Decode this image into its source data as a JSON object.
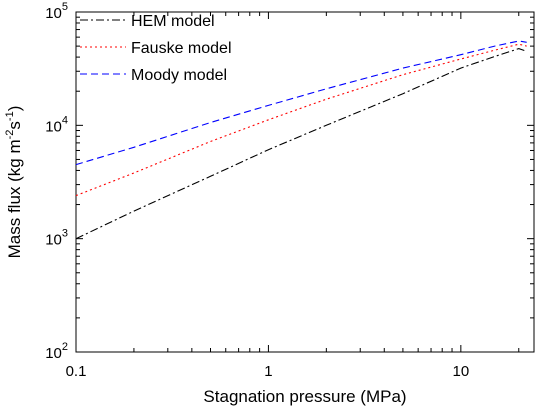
{
  "chart_data": {
    "type": "line",
    "xscale": "log",
    "yscale": "log",
    "xlim": [
      0.1,
      24
    ],
    "ylim": [
      100,
      100000
    ],
    "xlabel": "Stagnation pressure (MPa)",
    "ylabel": {
      "prefix": "Mass flux (kg m",
      "sup1": "-2",
      "mid": "s",
      "sup2": "-1",
      "suffix": ")"
    },
    "x_ticks": [
      {
        "value": 0.1,
        "label": "0.1"
      },
      {
        "value": 1,
        "label": "1"
      },
      {
        "value": 10,
        "label": "10"
      }
    ],
    "y_ticks": [
      {
        "value": 100,
        "base": "10",
        "exp": "2"
      },
      {
        "value": 1000,
        "base": "10",
        "exp": "3"
      },
      {
        "value": 10000,
        "base": "10",
        "exp": "4"
      },
      {
        "value": 100000,
        "base": "10",
        "exp": "5"
      }
    ],
    "legend_position": "top-left",
    "grid": false,
    "series": [
      {
        "name": "HEM model",
        "color": "#000000",
        "dash": "dash-dot",
        "x": [
          0.1,
          0.2,
          0.5,
          1,
          2,
          5,
          10,
          15,
          20,
          22
        ],
        "y": [
          1000,
          1750,
          3550,
          6100,
          10000,
          19000,
          32000,
          40500,
          47500,
          45000
        ]
      },
      {
        "name": "Fauske model",
        "color": "#ff0000",
        "dash": "dotted",
        "x": [
          0.1,
          0.2,
          0.5,
          1,
          2,
          5,
          10,
          15,
          20,
          22
        ],
        "y": [
          2400,
          3800,
          7200,
          11200,
          17000,
          28000,
          38500,
          46000,
          52000,
          50000
        ]
      },
      {
        "name": "Moody model",
        "color": "#0000ff",
        "dash": "dashed",
        "x": [
          0.1,
          0.2,
          0.5,
          1,
          2,
          5,
          10,
          15,
          20,
          22
        ],
        "y": [
          4500,
          6400,
          10600,
          15000,
          21000,
          32000,
          42000,
          50000,
          55500,
          54000
        ]
      }
    ]
  }
}
